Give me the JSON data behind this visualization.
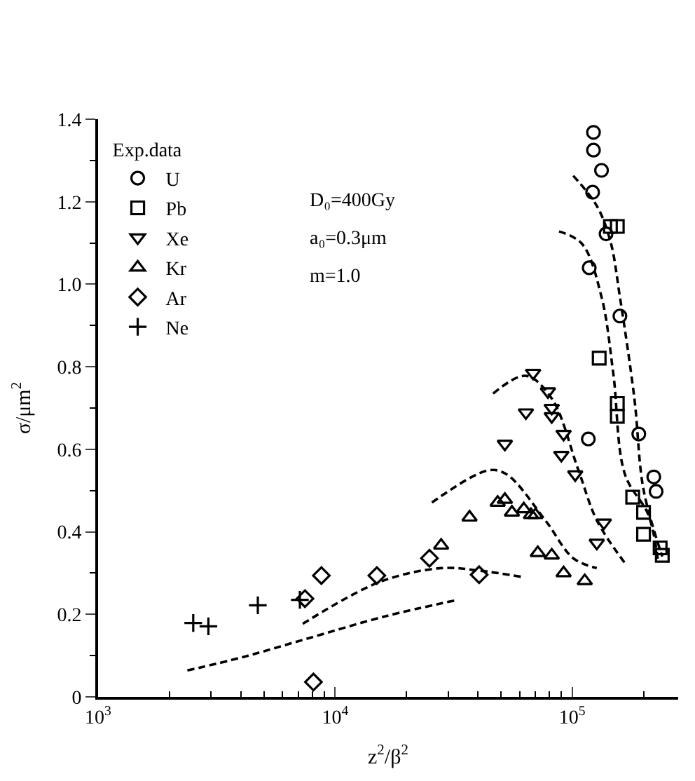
{
  "chart_data": {
    "type": "scatter",
    "xlabel": "z$^{2}$/β$^{2}$",
    "ylabel": "σ/μm$^{2}$",
    "legend_title": "Exp.data",
    "legend": "top left",
    "log": "x",
    "xlim": [
      1000,
      280000
    ],
    "xticks": [
      {
        "value": 1000,
        "label": "10$^{3}$"
      },
      {
        "value": 10000,
        "label": "10$^{4}$"
      },
      {
        "value": 100000,
        "label": "10$^{5}$"
      }
    ],
    "ylim": [
      0,
      1.4
    ],
    "yticks": [
      0,
      0.2,
      0.4,
      0.6,
      0.8,
      {
        "value": 1.0,
        "label": "1.0"
      },
      1.2,
      1.4
    ],
    "annotations": [
      "D₀=400Gy",
      "a₀=0.3μm",
      "m=1.0"
    ],
    "series": [
      {
        "name": "U",
        "marker": "circle",
        "color": "#000000",
        "x": [
          123000,
          123000,
          133000,
          122000,
          139000,
          118000,
          159000,
          117000,
          191000,
          221000,
          226000
        ],
        "values": [
          1.368,
          1.325,
          1.276,
          1.223,
          1.122,
          1.04,
          0.923,
          0.625,
          0.637,
          0.533,
          0.498
        ]
      },
      {
        "name": "Pb",
        "marker": "square",
        "color": "#000000",
        "x": [
          145000,
          155000,
          130000,
          155000,
          155000,
          180000,
          200000,
          200000,
          235000,
          240000
        ],
        "values": [
          1.14,
          1.14,
          0.821,
          0.711,
          0.68,
          0.484,
          0.447,
          0.394,
          0.361,
          0.343
        ]
      },
      {
        "name": "Xe",
        "marker": "triangle-down",
        "color": "#000000",
        "x": [
          68400,
          79000,
          82000,
          82000,
          63800,
          52000,
          92000,
          90000,
          103000,
          136000,
          127000
        ],
        "values": [
          0.785,
          0.74,
          0.7,
          0.68,
          0.689,
          0.613,
          0.637,
          0.586,
          0.539,
          0.422,
          0.373
        ]
      },
      {
        "name": "Kr",
        "marker": "triangle",
        "color": "#000000",
        "x": [
          36900,
          28000,
          48500,
          52000,
          55700,
          62500,
          67000,
          70000,
          71600,
          82000,
          92000,
          113000
        ],
        "values": [
          0.435,
          0.367,
          0.471,
          0.478,
          0.447,
          0.455,
          0.441,
          0.441,
          0.349,
          0.343,
          0.3,
          0.281
        ]
      },
      {
        "name": "Ar",
        "marker": "diamond",
        "color": "#000000",
        "x": [
          7460,
          8750,
          8100,
          15000,
          25000,
          40500
        ],
        "values": [
          0.238,
          0.294,
          0.036,
          0.294,
          0.336,
          0.296
        ]
      },
      {
        "name": "Ne",
        "marker": "cross",
        "color": "#000000",
        "x": [
          2520,
          2920,
          4720,
          7100
        ],
        "values": [
          0.179,
          0.171,
          0.222,
          0.235
        ]
      },
      {
        "type": "line",
        "line_style": "dashed",
        "color": "#000000",
        "x": [
          2380,
          4120,
          7500,
          16200,
          32200
        ],
        "values": [
          0.064,
          0.097,
          0.14,
          0.195,
          0.234
        ]
      },
      {
        "type": "line",
        "line_style": "dashed",
        "color": "#000000",
        "x": [
          7300,
          15500,
          28000,
          40500,
          61000
        ],
        "values": [
          0.177,
          0.279,
          0.312,
          0.306,
          0.291
        ]
      },
      {
        "type": "line",
        "line_style": "dashed",
        "color": "#000000",
        "x": [
          25600,
          44300,
          53000,
          77000,
          101000,
          127000
        ],
        "values": [
          0.471,
          0.549,
          0.539,
          0.428,
          0.336,
          0.312
        ]
      },
      {
        "type": "line",
        "line_style": "dashed",
        "color": "#000000",
        "x": [
          46400,
          63800,
          82000,
          106000,
          127000,
          167000
        ],
        "values": [
          0.735,
          0.778,
          0.723,
          0.551,
          0.428,
          0.324
        ]
      },
      {
        "type": "line",
        "line_style": "dashed",
        "color": "#000000",
        "x": [
          88000,
          110000,
          133000,
          149000,
          167000,
          210000,
          230000
        ],
        "values": [
          1.128,
          1.098,
          0.969,
          0.785,
          0.539,
          0.44,
          0.33
        ]
      },
      {
        "type": "line",
        "line_style": "dashed",
        "color": "#000000",
        "x": [
          101000,
          127000,
          145000,
          159000,
          183000,
          200000,
          240000
        ],
        "values": [
          1.263,
          1.19,
          1.104,
          0.969,
          0.723,
          0.502,
          0.34
        ]
      }
    ]
  }
}
